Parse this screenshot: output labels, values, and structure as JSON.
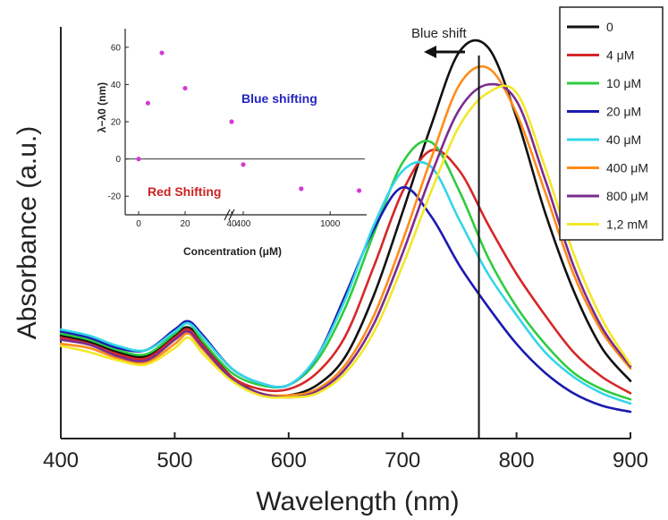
{
  "chart_data": [
    {
      "type": "line",
      "title": "",
      "xlabel": "Wavelength (nm)",
      "ylabel": "Absorbance (a.u.)",
      "xlim": [
        400,
        900
      ],
      "x_ticks": [
        "400",
        "500",
        "600",
        "700",
        "800",
        "900"
      ],
      "y_ticks": [],
      "ylim": [
        0,
        1
      ],
      "legend_position": "top-right",
      "annotation": {
        "text": "Blue shift",
        "reference_wavelength": 767
      },
      "x": [
        400,
        425,
        450,
        475,
        500,
        512,
        525,
        550,
        575,
        600,
        625,
        650,
        675,
        700,
        725,
        750,
        775,
        800,
        825,
        850,
        875,
        900
      ],
      "series": [
        {
          "name": "0",
          "color": "#111111",
          "values": [
            0.25,
            0.235,
            0.21,
            0.2,
            0.25,
            0.27,
            0.23,
            0.15,
            0.11,
            0.105,
            0.13,
            0.2,
            0.35,
            0.55,
            0.76,
            0.94,
            0.95,
            0.78,
            0.55,
            0.36,
            0.22,
            0.14
          ]
        },
        {
          "name": "4 μM",
          "color": "#d62728",
          "values": [
            0.245,
            0.23,
            0.205,
            0.195,
            0.245,
            0.265,
            0.225,
            0.15,
            0.12,
            0.12,
            0.16,
            0.25,
            0.42,
            0.6,
            0.7,
            0.65,
            0.52,
            0.4,
            0.3,
            0.21,
            0.15,
            0.11
          ]
        },
        {
          "name": "10 μM",
          "color": "#2ecc40",
          "values": [
            0.255,
            0.24,
            0.215,
            0.205,
            0.255,
            0.28,
            0.235,
            0.16,
            0.13,
            0.13,
            0.19,
            0.32,
            0.5,
            0.67,
            0.72,
            0.6,
            0.44,
            0.32,
            0.23,
            0.16,
            0.12,
            0.095
          ]
        },
        {
          "name": "20 μM",
          "color": "#1a1ab0",
          "values": [
            0.26,
            0.245,
            0.22,
            0.215,
            0.265,
            0.285,
            0.25,
            0.17,
            0.135,
            0.13,
            0.2,
            0.35,
            0.51,
            0.61,
            0.54,
            0.42,
            0.32,
            0.23,
            0.16,
            0.11,
            0.08,
            0.065
          ]
        },
        {
          "name": "40 μM",
          "color": "#33d6e8",
          "values": [
            0.265,
            0.25,
            0.225,
            0.215,
            0.26,
            0.28,
            0.245,
            0.17,
            0.135,
            0.13,
            0.2,
            0.34,
            0.52,
            0.65,
            0.66,
            0.53,
            0.4,
            0.3,
            0.21,
            0.15,
            0.11,
            0.085
          ]
        },
        {
          "name": "400 μM",
          "color": "#ff8c1a",
          "values": [
            0.23,
            0.22,
            0.195,
            0.185,
            0.23,
            0.255,
            0.215,
            0.145,
            0.11,
            0.105,
            0.12,
            0.18,
            0.3,
            0.48,
            0.68,
            0.86,
            0.9,
            0.79,
            0.6,
            0.4,
            0.26,
            0.17
          ]
        },
        {
          "name": "800 μM",
          "color": "#7a2d8e",
          "values": [
            0.24,
            0.228,
            0.2,
            0.19,
            0.24,
            0.26,
            0.22,
            0.145,
            0.11,
            0.1,
            0.115,
            0.17,
            0.28,
            0.45,
            0.64,
            0.8,
            0.86,
            0.82,
            0.63,
            0.42,
            0.27,
            0.175
          ]
        },
        {
          "name": "1,2 mM",
          "color": "#f2e82a",
          "values": [
            0.225,
            0.21,
            0.19,
            0.18,
            0.22,
            0.245,
            0.205,
            0.14,
            0.105,
            0.1,
            0.11,
            0.16,
            0.26,
            0.42,
            0.6,
            0.76,
            0.84,
            0.84,
            0.66,
            0.45,
            0.29,
            0.18
          ]
        }
      ]
    },
    {
      "type": "scatter",
      "title": "",
      "xlabel": "Concentration (μM)",
      "ylabel": "λ−λ0 (nm)",
      "ylim": [
        -30,
        70
      ],
      "y_ticks": [
        "-20",
        "0",
        "20",
        "40",
        "60"
      ],
      "x_ticks": [
        "0",
        "20",
        "40",
        "400",
        "1000"
      ],
      "axis_break": "between 40 and 400 μM",
      "zero_line": true,
      "point_color": "#d43bd4",
      "points": [
        {
          "x": 0,
          "y": 0
        },
        {
          "x": 4,
          "y": 30
        },
        {
          "x": 10,
          "y": 57
        },
        {
          "x": 20,
          "y": 38
        },
        {
          "x": 40,
          "y": 20
        },
        {
          "x": 400,
          "y": -3
        },
        {
          "x": 800,
          "y": -16
        },
        {
          "x": 1200,
          "y": -17
        }
      ],
      "annotations": [
        {
          "text": "Blue shifting",
          "color": "#2525c0"
        },
        {
          "text": "Red Shifting",
          "color": "#cc2222"
        }
      ]
    }
  ]
}
